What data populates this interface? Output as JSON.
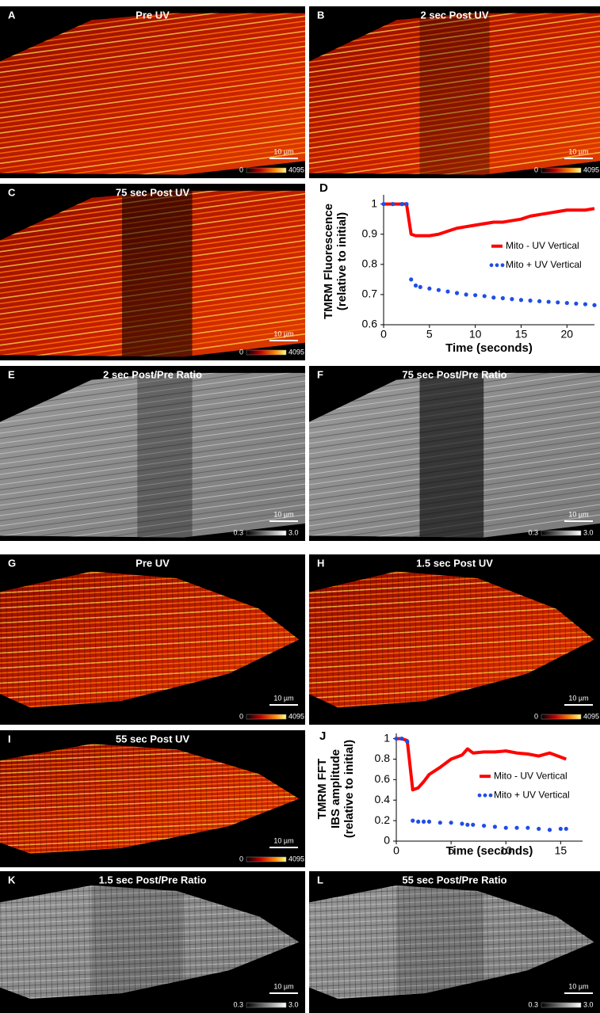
{
  "panels": [
    {
      "letter": "A",
      "title": "Pre UV",
      "scale_bar": "10 µm",
      "colorbar": [
        "0",
        "4095"
      ]
    },
    {
      "letter": "B",
      "title": "2 sec Post UV",
      "scale_bar": "10 µm",
      "colorbar": [
        "0",
        "4095"
      ]
    },
    {
      "letter": "C",
      "title": "75 sec Post UV",
      "scale_bar": "10 µm",
      "colorbar": [
        "0",
        "4095"
      ]
    },
    {
      "letter": "E",
      "title": "2 sec Post/Pre Ratio",
      "scale_bar": "10 µm",
      "colorbar": [
        "0.3",
        "3.0"
      ]
    },
    {
      "letter": "F",
      "title": "75 sec Post/Pre Ratio",
      "scale_bar": "10 µm",
      "colorbar": [
        "0.3",
        "3.0"
      ]
    },
    {
      "letter": "G",
      "title": "Pre UV",
      "scale_bar": "10 µm",
      "colorbar": [
        "0",
        "4095"
      ]
    },
    {
      "letter": "H",
      "title": "1.5 sec Post UV",
      "scale_bar": "10 µm",
      "colorbar": [
        "0",
        "4095"
      ]
    },
    {
      "letter": "I",
      "title": "55 sec Post UV",
      "scale_bar": "10 µm",
      "colorbar": [
        "0",
        "4095"
      ]
    },
    {
      "letter": "K",
      "title": "1.5 sec Post/Pre Ratio",
      "scale_bar": "10 µm",
      "colorbar": [
        "0.3",
        "3.0"
      ]
    },
    {
      "letter": "L",
      "title": "55 sec Post/Pre Ratio",
      "scale_bar": "10 µm",
      "colorbar": [
        "0.3",
        "3.0"
      ]
    }
  ],
  "chart_data": [
    {
      "type": "line",
      "panel_label": "D",
      "y_label": [
        "TMRM Fluorescence",
        "(relative to initial)"
      ],
      "x_label": "Time (seconds)",
      "x": [
        0,
        1,
        2,
        2.5,
        3,
        3.5,
        4,
        5,
        6,
        7,
        8,
        9,
        10,
        11,
        12,
        13,
        14,
        15,
        16,
        17,
        18,
        19,
        20,
        21,
        22,
        23
      ],
      "series": [
        {
          "name": "Mito - UV Vertical",
          "color": "#ff0000",
          "style": "solid",
          "values": [
            1,
            1,
            1,
            1,
            0.9,
            0.895,
            0.895,
            0.895,
            0.9,
            0.91,
            0.92,
            0.925,
            0.93,
            0.935,
            0.94,
            0.94,
            0.945,
            0.95,
            0.96,
            0.965,
            0.97,
            0.975,
            0.98,
            0.98,
            0.98,
            0.985
          ]
        },
        {
          "name": "Mito + UV Vertical",
          "color": "#1f4ee6",
          "style": "dotted",
          "values": [
            1,
            1,
            1,
            1,
            0.75,
            0.73,
            0.725,
            0.72,
            0.715,
            0.71,
            0.705,
            0.7,
            0.698,
            0.695,
            0.69,
            0.688,
            0.685,
            0.682,
            0.68,
            0.678,
            0.676,
            0.674,
            0.672,
            0.67,
            0.668,
            0.665
          ]
        }
      ],
      "xlim": [
        0,
        23
      ],
      "xticks": [
        0,
        5,
        10,
        15,
        20
      ],
      "ylim": [
        0.6,
        1.02
      ],
      "yticks": [
        0.6,
        0.7,
        0.8,
        0.9,
        1
      ],
      "legend": "right"
    },
    {
      "type": "line",
      "panel_label": "J",
      "y_label": [
        "TMRM FFT",
        "IBS amplitude",
        "(relative to initial)"
      ],
      "x_label": "Time (seconds)",
      "x": [
        0,
        0.5,
        1,
        1.5,
        2,
        2.5,
        3,
        4,
        5,
        6,
        6.5,
        7,
        8,
        9,
        10,
        11,
        12,
        13,
        14,
        15,
        15.5
      ],
      "series": [
        {
          "name": "Mito - UV Vertical",
          "color": "#ff0000",
          "style": "solid",
          "values": [
            1,
            1,
            0.98,
            0.5,
            0.52,
            0.58,
            0.65,
            0.72,
            0.8,
            0.84,
            0.9,
            0.86,
            0.87,
            0.87,
            0.88,
            0.86,
            0.85,
            0.83,
            0.86,
            0.82,
            0.8
          ]
        },
        {
          "name": "Mito + UV Vertical",
          "color": "#1f4ee6",
          "style": "dotted",
          "values": [
            1,
            1,
            0.97,
            0.2,
            0.19,
            0.19,
            0.19,
            0.18,
            0.18,
            0.17,
            0.16,
            0.16,
            0.15,
            0.14,
            0.13,
            0.13,
            0.13,
            0.12,
            0.11,
            0.12,
            0.12
          ]
        }
      ],
      "xlim": [
        0,
        17
      ],
      "xticks": [
        0,
        5,
        10,
        15
      ],
      "ylim": [
        0,
        1.02
      ],
      "yticks": [
        0,
        0.2,
        0.4,
        0.6,
        0.8,
        1
      ],
      "legend": "right"
    }
  ]
}
